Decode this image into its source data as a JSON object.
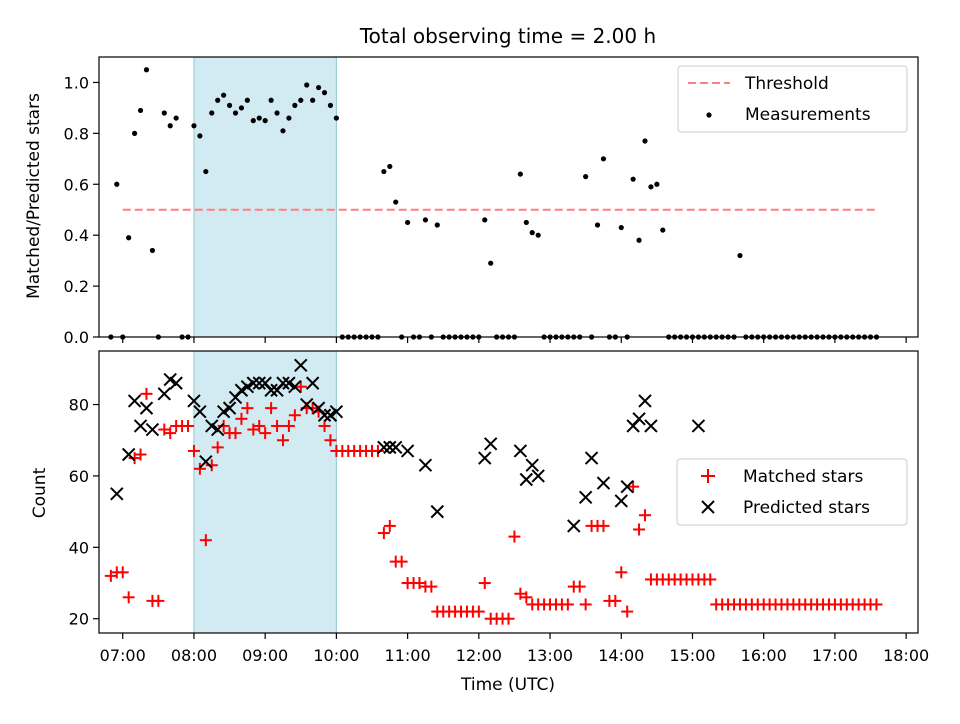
{
  "title": "Total observing time = 2.00 h",
  "colors": {
    "threshold": "#ff7f7f",
    "measurement": "#000000",
    "matched": "#ff0000",
    "predicted": "#000000",
    "highlight": "#add8e6"
  },
  "chart_data": [
    {
      "type": "scatter",
      "ylabel": "Matched/Predicted stars",
      "ylim": [
        0,
        1.1
      ],
      "xlim": [
        "06:40",
        "18:10"
      ],
      "yticks": [
        0,
        0.2,
        0.4,
        0.6,
        0.8,
        1.0
      ],
      "ytick_labels": [
        "0.0",
        "0.2",
        "0.4",
        "0.6",
        "0.8",
        "1.0"
      ],
      "highlight_span": [
        "08:00",
        "10:00"
      ],
      "legend": {
        "position": "upper right",
        "threshold_label": "Threshold",
        "measurements_label": "Measurements"
      },
      "threshold": {
        "value": 0.5,
        "x_range": [
          "07:00",
          "17:35"
        ]
      },
      "measurements": [
        [
          "06:50",
          0
        ],
        [
          "06:55",
          0.6
        ],
        [
          "07:00",
          0
        ],
        [
          "07:05",
          0.39
        ],
        [
          "07:10",
          0.8
        ],
        [
          "07:15",
          0.89
        ],
        [
          "07:20",
          1.05
        ],
        [
          "07:25",
          0.34
        ],
        [
          "07:30",
          0
        ],
        [
          "07:35",
          0.88
        ],
        [
          "07:40",
          0.83
        ],
        [
          "07:45",
          0.86
        ],
        [
          "07:50",
          0
        ],
        [
          "07:55",
          0
        ],
        [
          "08:00",
          0.83
        ],
        [
          "08:05",
          0.79
        ],
        [
          "08:10",
          0.65
        ],
        [
          "08:15",
          0.88
        ],
        [
          "08:20",
          0.93
        ],
        [
          "08:25",
          0.95
        ],
        [
          "08:30",
          0.91
        ],
        [
          "08:35",
          0.88
        ],
        [
          "08:40",
          0.9
        ],
        [
          "08:45",
          0.93
        ],
        [
          "08:50",
          0.85
        ],
        [
          "08:55",
          0.86
        ],
        [
          "09:00",
          0.85
        ],
        [
          "09:05",
          0.93
        ],
        [
          "09:10",
          0.88
        ],
        [
          "09:15",
          0.81
        ],
        [
          "09:20",
          0.86
        ],
        [
          "09:25",
          0.91
        ],
        [
          "09:30",
          0.93
        ],
        [
          "09:35",
          0.99
        ],
        [
          "09:40",
          0.93
        ],
        [
          "09:45",
          0.98
        ],
        [
          "09:50",
          0.96
        ],
        [
          "09:55",
          0.91
        ],
        [
          "10:00",
          0.86
        ],
        [
          "10:05",
          0
        ],
        [
          "10:10",
          0
        ],
        [
          "10:15",
          0
        ],
        [
          "10:20",
          0
        ],
        [
          "10:25",
          0
        ],
        [
          "10:30",
          0
        ],
        [
          "10:35",
          0
        ],
        [
          "10:40",
          0.65
        ],
        [
          "10:45",
          0.67
        ],
        [
          "10:50",
          0.53
        ],
        [
          "10:55",
          0
        ],
        [
          "11:00",
          0.45
        ],
        [
          "11:05",
          0
        ],
        [
          "11:10",
          0
        ],
        [
          "11:15",
          0.46
        ],
        [
          "11:20",
          0
        ],
        [
          "11:25",
          0.44
        ],
        [
          "11:30",
          0
        ],
        [
          "11:35",
          0
        ],
        [
          "11:40",
          0
        ],
        [
          "11:45",
          0
        ],
        [
          "11:50",
          0
        ],
        [
          "11:55",
          0
        ],
        [
          "12:00",
          0
        ],
        [
          "12:05",
          0.46
        ],
        [
          "12:10",
          0.29
        ],
        [
          "12:15",
          0
        ],
        [
          "12:20",
          0
        ],
        [
          "12:25",
          0
        ],
        [
          "12:30",
          0
        ],
        [
          "12:35",
          0.64
        ],
        [
          "12:40",
          0.45
        ],
        [
          "12:45",
          0.41
        ],
        [
          "12:50",
          0.4
        ],
        [
          "12:55",
          0
        ],
        [
          "13:00",
          0
        ],
        [
          "13:05",
          0
        ],
        [
          "13:10",
          0
        ],
        [
          "13:15",
          0
        ],
        [
          "13:20",
          0
        ],
        [
          "13:25",
          0
        ],
        [
          "13:30",
          0.63
        ],
        [
          "13:35",
          0
        ],
        [
          "13:40",
          0.44
        ],
        [
          "13:45",
          0.7
        ],
        [
          "13:50",
          0
        ],
        [
          "13:55",
          0
        ],
        [
          "14:00",
          0.43
        ],
        [
          "14:05",
          0
        ],
        [
          "14:10",
          0.62
        ],
        [
          "14:15",
          0.38
        ],
        [
          "14:20",
          0.77
        ],
        [
          "14:25",
          0.59
        ],
        [
          "14:30",
          0.6
        ],
        [
          "14:35",
          0.42
        ],
        [
          "14:40",
          0
        ],
        [
          "14:45",
          0
        ],
        [
          "14:50",
          0
        ],
        [
          "14:55",
          0
        ],
        [
          "15:00",
          0
        ],
        [
          "15:05",
          0
        ],
        [
          "15:10",
          0
        ],
        [
          "15:15",
          0
        ],
        [
          "15:20",
          0
        ],
        [
          "15:25",
          0
        ],
        [
          "15:30",
          0
        ],
        [
          "15:35",
          0
        ],
        [
          "15:40",
          0.32
        ],
        [
          "15:45",
          0
        ],
        [
          "15:50",
          0
        ],
        [
          "15:55",
          0
        ],
        [
          "16:00",
          0
        ],
        [
          "16:05",
          0
        ],
        [
          "16:10",
          0
        ],
        [
          "16:15",
          0
        ],
        [
          "16:20",
          0
        ],
        [
          "16:25",
          0
        ],
        [
          "16:30",
          0
        ],
        [
          "16:35",
          0
        ],
        [
          "16:40",
          0
        ],
        [
          "16:45",
          0
        ],
        [
          "16:50",
          0
        ],
        [
          "16:55",
          0
        ],
        [
          "17:00",
          0
        ],
        [
          "17:05",
          0
        ],
        [
          "17:10",
          0
        ],
        [
          "17:15",
          0
        ],
        [
          "17:20",
          0
        ],
        [
          "17:25",
          0
        ],
        [
          "17:30",
          0
        ],
        [
          "17:35",
          0
        ]
      ]
    },
    {
      "type": "scatter",
      "ylabel": "Count",
      "xlabel": "Time (UTC)",
      "ylim": [
        16,
        95
      ],
      "xlim": [
        "06:40",
        "18:10"
      ],
      "yticks": [
        20,
        40,
        60,
        80
      ],
      "xticks": [
        "07:00",
        "08:00",
        "09:00",
        "10:00",
        "11:00",
        "12:00",
        "13:00",
        "14:00",
        "15:00",
        "16:00",
        "17:00",
        "18:00"
      ],
      "highlight_span": [
        "08:00",
        "10:00"
      ],
      "legend": {
        "position": "center right",
        "matched_label": "Matched stars",
        "predicted_label": "Predicted stars"
      },
      "matched_stars": [
        [
          "06:50",
          32
        ],
        [
          "06:55",
          33
        ],
        [
          "07:00",
          33
        ],
        [
          "07:05",
          26
        ],
        [
          "07:10",
          65
        ],
        [
          "07:15",
          66
        ],
        [
          "07:20",
          83
        ],
        [
          "07:25",
          25
        ],
        [
          "07:30",
          25
        ],
        [
          "07:35",
          73
        ],
        [
          "07:40",
          72
        ],
        [
          "07:45",
          74
        ],
        [
          "07:50",
          74
        ],
        [
          "07:55",
          74
        ],
        [
          "08:00",
          67
        ],
        [
          "08:05",
          62
        ],
        [
          "08:10",
          42
        ],
        [
          "08:15",
          63
        ],
        [
          "08:20",
          68
        ],
        [
          "08:25",
          74
        ],
        [
          "08:30",
          72
        ],
        [
          "08:35",
          72
        ],
        [
          "08:40",
          76
        ],
        [
          "08:45",
          79
        ],
        [
          "08:50",
          73
        ],
        [
          "08:55",
          74
        ],
        [
          "09:00",
          72
        ],
        [
          "09:05",
          79
        ],
        [
          "09:10",
          74
        ],
        [
          "09:15",
          70
        ],
        [
          "09:20",
          74
        ],
        [
          "09:25",
          77
        ],
        [
          "09:30",
          85
        ],
        [
          "09:35",
          79
        ],
        [
          "09:40",
          79
        ],
        [
          "09:45",
          78
        ],
        [
          "09:50",
          74
        ],
        [
          "09:55",
          70
        ],
        [
          "10:00",
          67
        ],
        [
          "10:05",
          67
        ],
        [
          "10:10",
          67
        ],
        [
          "10:15",
          67
        ],
        [
          "10:20",
          67
        ],
        [
          "10:25",
          67
        ],
        [
          "10:30",
          67
        ],
        [
          "10:35",
          67
        ],
        [
          "10:40",
          44
        ],
        [
          "10:45",
          46
        ],
        [
          "10:50",
          36
        ],
        [
          "10:55",
          36
        ],
        [
          "11:00",
          30
        ],
        [
          "11:05",
          30
        ],
        [
          "11:10",
          30
        ],
        [
          "11:15",
          29
        ],
        [
          "11:20",
          29
        ],
        [
          "11:25",
          22
        ],
        [
          "11:30",
          22
        ],
        [
          "11:35",
          22
        ],
        [
          "11:40",
          22
        ],
        [
          "11:45",
          22
        ],
        [
          "11:50",
          22
        ],
        [
          "11:55",
          22
        ],
        [
          "12:00",
          22
        ],
        [
          "12:05",
          30
        ],
        [
          "12:10",
          20
        ],
        [
          "12:15",
          20
        ],
        [
          "12:20",
          20
        ],
        [
          "12:25",
          20
        ],
        [
          "12:30",
          43
        ],
        [
          "12:35",
          27
        ],
        [
          "12:40",
          26
        ],
        [
          "12:45",
          24
        ],
        [
          "12:50",
          24
        ],
        [
          "12:55",
          24
        ],
        [
          "13:00",
          24
        ],
        [
          "13:05",
          24
        ],
        [
          "13:10",
          24
        ],
        [
          "13:15",
          24
        ],
        [
          "13:20",
          29
        ],
        [
          "13:25",
          29
        ],
        [
          "13:30",
          24
        ],
        [
          "13:35",
          46
        ],
        [
          "13:40",
          46
        ],
        [
          "13:45",
          46
        ],
        [
          "13:50",
          25
        ],
        [
          "13:55",
          25
        ],
        [
          "14:00",
          33
        ],
        [
          "14:05",
          22
        ],
        [
          "14:10",
          57
        ],
        [
          "14:15",
          45
        ],
        [
          "14:20",
          49
        ],
        [
          "14:25",
          31
        ],
        [
          "14:30",
          31
        ],
        [
          "14:35",
          31
        ],
        [
          "14:40",
          31
        ],
        [
          "14:45",
          31
        ],
        [
          "14:50",
          31
        ],
        [
          "14:55",
          31
        ],
        [
          "15:00",
          31
        ],
        [
          "15:05",
          31
        ],
        [
          "15:10",
          31
        ],
        [
          "15:15",
          31
        ],
        [
          "15:20",
          24
        ],
        [
          "15:25",
          24
        ],
        [
          "15:30",
          24
        ],
        [
          "15:35",
          24
        ],
        [
          "15:40",
          24
        ],
        [
          "15:45",
          24
        ],
        [
          "15:50",
          24
        ],
        [
          "15:55",
          24
        ],
        [
          "16:00",
          24
        ],
        [
          "16:05",
          24
        ],
        [
          "16:10",
          24
        ],
        [
          "16:15",
          24
        ],
        [
          "16:20",
          24
        ],
        [
          "16:25",
          24
        ],
        [
          "16:30",
          24
        ],
        [
          "16:35",
          24
        ],
        [
          "16:40",
          24
        ],
        [
          "16:45",
          24
        ],
        [
          "16:50",
          24
        ],
        [
          "16:55",
          24
        ],
        [
          "17:00",
          24
        ],
        [
          "17:05",
          24
        ],
        [
          "17:10",
          24
        ],
        [
          "17:15",
          24
        ],
        [
          "17:20",
          24
        ],
        [
          "17:25",
          24
        ],
        [
          "17:30",
          24
        ],
        [
          "17:35",
          24
        ]
      ],
      "predicted_stars": [
        [
          "06:55",
          55
        ],
        [
          "07:05",
          66
        ],
        [
          "07:10",
          81
        ],
        [
          "07:15",
          74
        ],
        [
          "07:20",
          79
        ],
        [
          "07:25",
          73
        ],
        [
          "07:35",
          83
        ],
        [
          "07:40",
          87
        ],
        [
          "07:45",
          86
        ],
        [
          "08:00",
          81
        ],
        [
          "08:05",
          78
        ],
        [
          "08:10",
          64
        ],
        [
          "08:15",
          74
        ],
        [
          "08:20",
          73
        ],
        [
          "08:25",
          78
        ],
        [
          "08:30",
          79
        ],
        [
          "08:35",
          82
        ],
        [
          "08:40",
          84
        ],
        [
          "08:45",
          85
        ],
        [
          "08:50",
          86
        ],
        [
          "08:55",
          86
        ],
        [
          "09:00",
          86
        ],
        [
          "09:05",
          84
        ],
        [
          "09:10",
          84
        ],
        [
          "09:15",
          86
        ],
        [
          "09:20",
          86
        ],
        [
          "09:25",
          85
        ],
        [
          "09:30",
          91
        ],
        [
          "09:35",
          80
        ],
        [
          "09:40",
          86
        ],
        [
          "09:45",
          79
        ],
        [
          "09:50",
          77
        ],
        [
          "09:55",
          77
        ],
        [
          "10:00",
          78
        ],
        [
          "10:40",
          68
        ],
        [
          "10:45",
          68
        ],
        [
          "10:50",
          68
        ],
        [
          "11:00",
          67
        ],
        [
          "11:15",
          63
        ],
        [
          "11:25",
          50
        ],
        [
          "12:05",
          65
        ],
        [
          "12:10",
          69
        ],
        [
          "12:35",
          67
        ],
        [
          "12:40",
          59
        ],
        [
          "12:45",
          63
        ],
        [
          "12:50",
          60
        ],
        [
          "13:20",
          46
        ],
        [
          "13:30",
          54
        ],
        [
          "13:35",
          65
        ],
        [
          "13:45",
          58
        ],
        [
          "14:00",
          53
        ],
        [
          "14:05",
          57
        ],
        [
          "14:10",
          74
        ],
        [
          "14:15",
          76
        ],
        [
          "14:20",
          81
        ],
        [
          "14:25",
          74
        ],
        [
          "15:05",
          74
        ]
      ]
    }
  ]
}
